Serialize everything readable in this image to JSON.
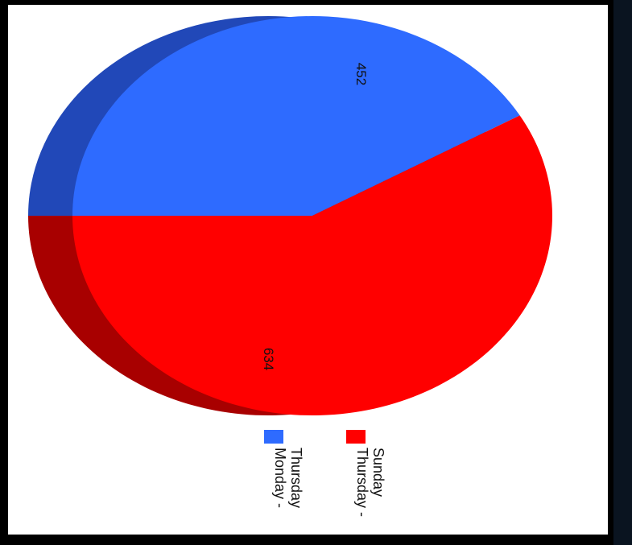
{
  "chart_data": {
    "type": "pie",
    "orientation": "rotated-90-clockwise",
    "style": "3d",
    "slices": [
      {
        "name": "Monday - Thursday",
        "legend_lines": [
          "Monday -",
          "Thursday"
        ],
        "value": 452,
        "label": "452",
        "color": "#2e6bff",
        "side_color": "#2148b8"
      },
      {
        "name": "Thursday - Sunday",
        "legend_lines": [
          "Thursday -",
          "Sunday"
        ],
        "value": 634,
        "label": "634",
        "color": "#ff0000",
        "side_color": "#a80000"
      }
    ],
    "legend_placement": "bottom"
  }
}
